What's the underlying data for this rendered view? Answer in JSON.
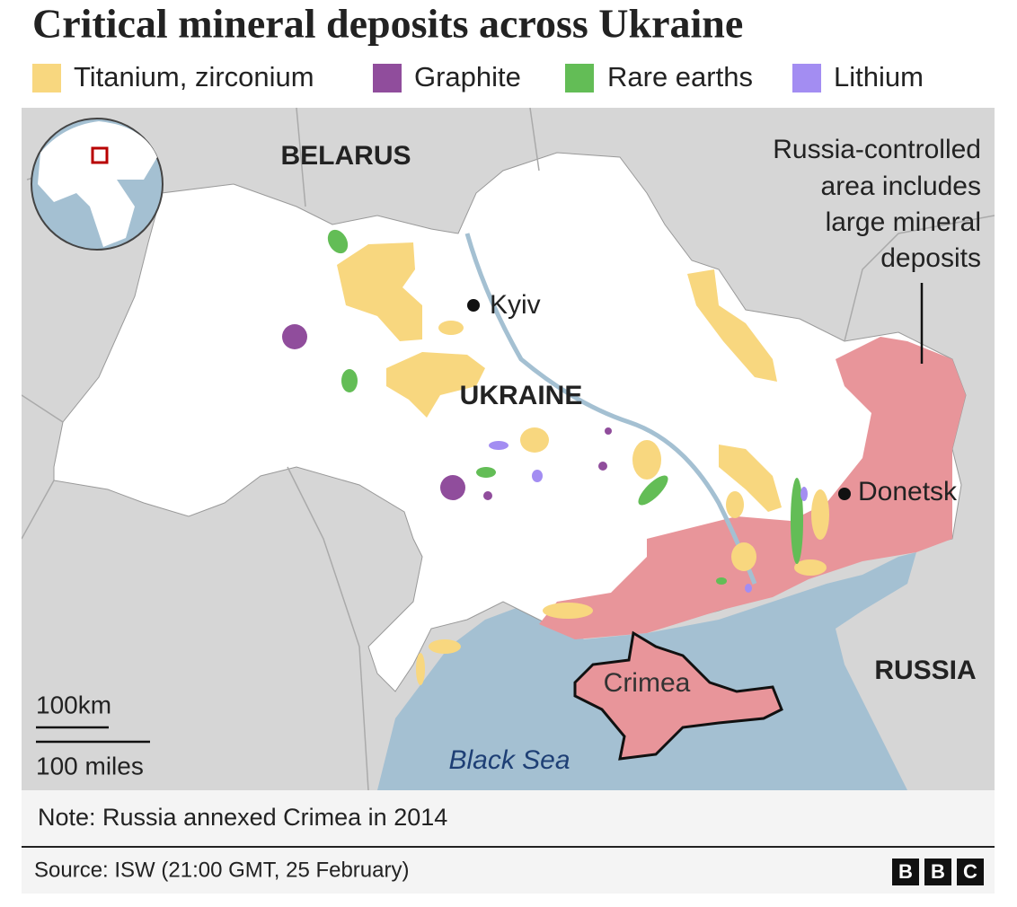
{
  "header": {
    "title": "Critical mineral deposits across Ukraine"
  },
  "legend": [
    {
      "label": "Titanium, zirconium",
      "color": "#f8d77f"
    },
    {
      "label": "Graphite",
      "color": "#904d9c"
    },
    {
      "label": "Rare earths",
      "color": "#63bd56"
    },
    {
      "label": "Lithium",
      "color": "#a38df2"
    }
  ],
  "map": {
    "labels": {
      "belarus": "BELARUS",
      "ukraine": "UKRAINE",
      "kyiv": "Kyiv",
      "donetsk": "Donetsk",
      "russia": "RUSSIA",
      "crimea": "Crimea",
      "black_sea": "Black Sea"
    },
    "annotation": [
      "Russia-controlled",
      "area includes",
      "large mineral",
      "deposits"
    ],
    "scale": {
      "km": "100km",
      "miles": "100 miles"
    }
  },
  "note": "Note: Russia annexed Crimea in 2014",
  "source": "Source: ISW (21:00 GMT, 25 February)",
  "logo": [
    "B",
    "B",
    "C"
  ]
}
